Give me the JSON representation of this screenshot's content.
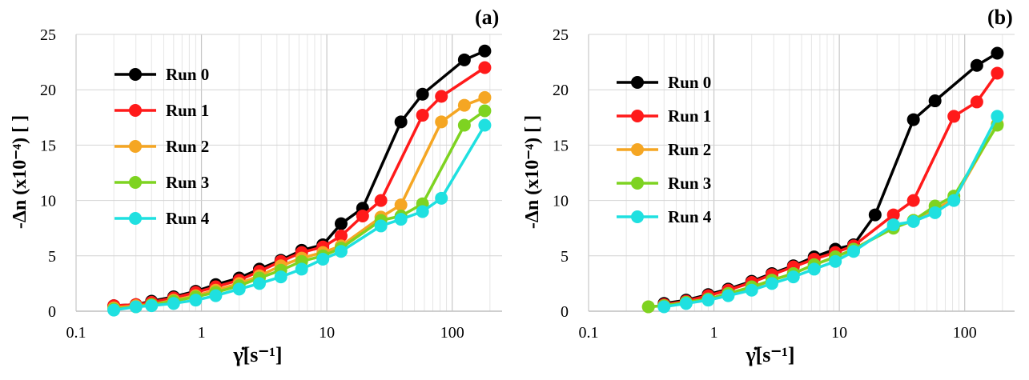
{
  "chart_data": [
    {
      "type": "line",
      "panel_label": "(a)",
      "xscale": "log",
      "xlim": [
        0.1,
        250
      ],
      "ylim": [
        0,
        25
      ],
      "xticks": [
        0.1,
        1,
        10,
        100
      ],
      "xtick_labels": [
        "0.1",
        "1",
        "10",
        "100"
      ],
      "yticks": [
        0,
        5,
        10,
        15,
        20,
        25
      ],
      "ytick_labels": [
        "0",
        "5",
        "10",
        "15",
        "20",
        "25"
      ],
      "xlabel": "γ̇[s⁻¹]",
      "ylabel": "-Δn (x10⁻⁴) [ ]",
      "legend_position": "top-left",
      "series": [
        {
          "name": "Run 0",
          "color": "#000000",
          "x": [
            0.2,
            0.3,
            0.4,
            0.6,
            0.9,
            1.3,
            2,
            2.9,
            4.3,
            6.3,
            9.3,
            13,
            19.3,
            39,
            58,
            125,
            182
          ],
          "y": [
            0.5,
            0.6,
            0.9,
            1.3,
            1.8,
            2.4,
            3.0,
            3.8,
            4.6,
            5.5,
            6.0,
            7.9,
            9.3,
            17.1,
            19.6,
            22.7,
            23.5
          ]
        },
        {
          "name": "Run 1",
          "color": "#ff1a1a",
          "x": [
            0.2,
            0.3,
            0.4,
            0.6,
            0.9,
            1.3,
            2,
            2.9,
            4.3,
            6.3,
            9.3,
            13,
            19.3,
            27,
            58,
            82,
            182
          ],
          "y": [
            0.5,
            0.6,
            0.8,
            1.2,
            1.7,
            2.2,
            2.8,
            3.6,
            4.5,
            5.3,
            5.8,
            6.8,
            8.6,
            10.0,
            17.7,
            19.4,
            22.0
          ]
        },
        {
          "name": "Run 2",
          "color": "#f5a623",
          "x": [
            0.2,
            0.3,
            0.4,
            0.6,
            0.9,
            1.3,
            2,
            2.9,
            4.3,
            6.3,
            9.3,
            13,
            27,
            39,
            82,
            125,
            182
          ],
          "y": [
            0.3,
            0.5,
            0.6,
            1.0,
            1.4,
            1.9,
            2.5,
            3.2,
            4.1,
            4.8,
            5.3,
            5.9,
            8.5,
            9.6,
            17.1,
            18.6,
            19.3
          ]
        },
        {
          "name": "Run 3",
          "color": "#7ed321",
          "x": [
            0.2,
            0.3,
            0.4,
            0.6,
            0.9,
            1.3,
            2,
            2.9,
            4.3,
            6.3,
            9.3,
            13,
            27,
            39,
            58,
            125,
            182
          ],
          "y": [
            0.2,
            0.4,
            0.6,
            0.9,
            1.3,
            1.7,
            2.3,
            3.0,
            3.7,
            4.5,
            5.0,
            5.7,
            8.2,
            8.6,
            9.7,
            16.8,
            18.1
          ]
        },
        {
          "name": "Run 4",
          "color": "#1fe0e0",
          "x": [
            0.2,
            0.3,
            0.4,
            0.6,
            0.9,
            1.3,
            2,
            2.9,
            4.3,
            6.3,
            9.3,
            13,
            27,
            39,
            58,
            82,
            182
          ],
          "y": [
            0.1,
            0.4,
            0.5,
            0.7,
            1.0,
            1.4,
            2.0,
            2.5,
            3.1,
            3.8,
            4.7,
            5.4,
            7.7,
            8.3,
            9.0,
            10.2,
            16.8
          ]
        }
      ]
    },
    {
      "type": "line",
      "panel_label": "(b)",
      "xscale": "log",
      "xlim": [
        0.1,
        250
      ],
      "ylim": [
        0,
        25
      ],
      "xticks": [
        0.1,
        1,
        10,
        100
      ],
      "xtick_labels": [
        "0.1",
        "1",
        "10",
        "100"
      ],
      "yticks": [
        0,
        5,
        10,
        15,
        20,
        25
      ],
      "ytick_labels": [
        "0",
        "5",
        "10",
        "15",
        "20",
        "25"
      ],
      "xlabel": "γ̇[s⁻¹]",
      "ylabel": "-Δn (x10⁻⁴) [ ]",
      "legend_position": "top-left",
      "series": [
        {
          "name": "Run 0",
          "color": "#000000",
          "x": [
            0.4,
            0.6,
            0.9,
            1.3,
            2,
            2.9,
            4.3,
            6.3,
            9.3,
            13,
            19.3,
            39,
            58,
            125,
            182
          ],
          "y": [
            0.7,
            1.0,
            1.5,
            2.0,
            2.7,
            3.4,
            4.1,
            4.9,
            5.6,
            6.0,
            8.7,
            17.3,
            19.0,
            22.2,
            23.3
          ]
        },
        {
          "name": "Run 1",
          "color": "#ff1a1a",
          "x": [
            0.4,
            0.6,
            0.9,
            1.3,
            2,
            2.9,
            4.3,
            6.3,
            9.3,
            13,
            27,
            39,
            82,
            125,
            182
          ],
          "y": [
            0.6,
            0.9,
            1.4,
            1.9,
            2.6,
            3.3,
            4.0,
            4.7,
            5.3,
            5.9,
            8.7,
            10.0,
            17.6,
            18.9,
            21.5
          ]
        },
        {
          "name": "Run 2",
          "color": "#f5a623",
          "x": [
            0.3,
            0.4,
            0.6,
            0.9,
            1.3,
            2,
            2.9,
            4.3,
            6.3,
            9.3,
            13,
            27,
            39,
            58,
            82,
            182
          ],
          "y": [
            0.4,
            0.5,
            0.8,
            1.1,
            1.6,
            2.1,
            2.8,
            3.4,
            4.2,
            4.9,
            5.6,
            7.6,
            8.2,
            9.2,
            10.1,
            16.9
          ]
        },
        {
          "name": "Run 3",
          "color": "#7ed321",
          "x": [
            0.3,
            0.4,
            0.6,
            0.9,
            1.3,
            2,
            2.9,
            4.3,
            6.3,
            9.3,
            13,
            27,
            39,
            58,
            82,
            182
          ],
          "y": [
            0.4,
            0.5,
            0.8,
            1.1,
            1.6,
            2.2,
            2.8,
            3.4,
            4.2,
            4.9,
            5.6,
            7.5,
            8.2,
            9.5,
            10.4,
            16.8
          ]
        },
        {
          "name": "Run 4",
          "color": "#1fe0e0",
          "x": [
            0.4,
            0.6,
            0.9,
            1.3,
            2,
            2.9,
            4.3,
            6.3,
            9.3,
            13,
            27,
            39,
            58,
            82,
            182
          ],
          "y": [
            0.4,
            0.7,
            1.0,
            1.4,
            1.9,
            2.5,
            3.1,
            3.8,
            4.5,
            5.4,
            7.8,
            8.1,
            8.9,
            10.0,
            17.6
          ]
        }
      ]
    }
  ]
}
